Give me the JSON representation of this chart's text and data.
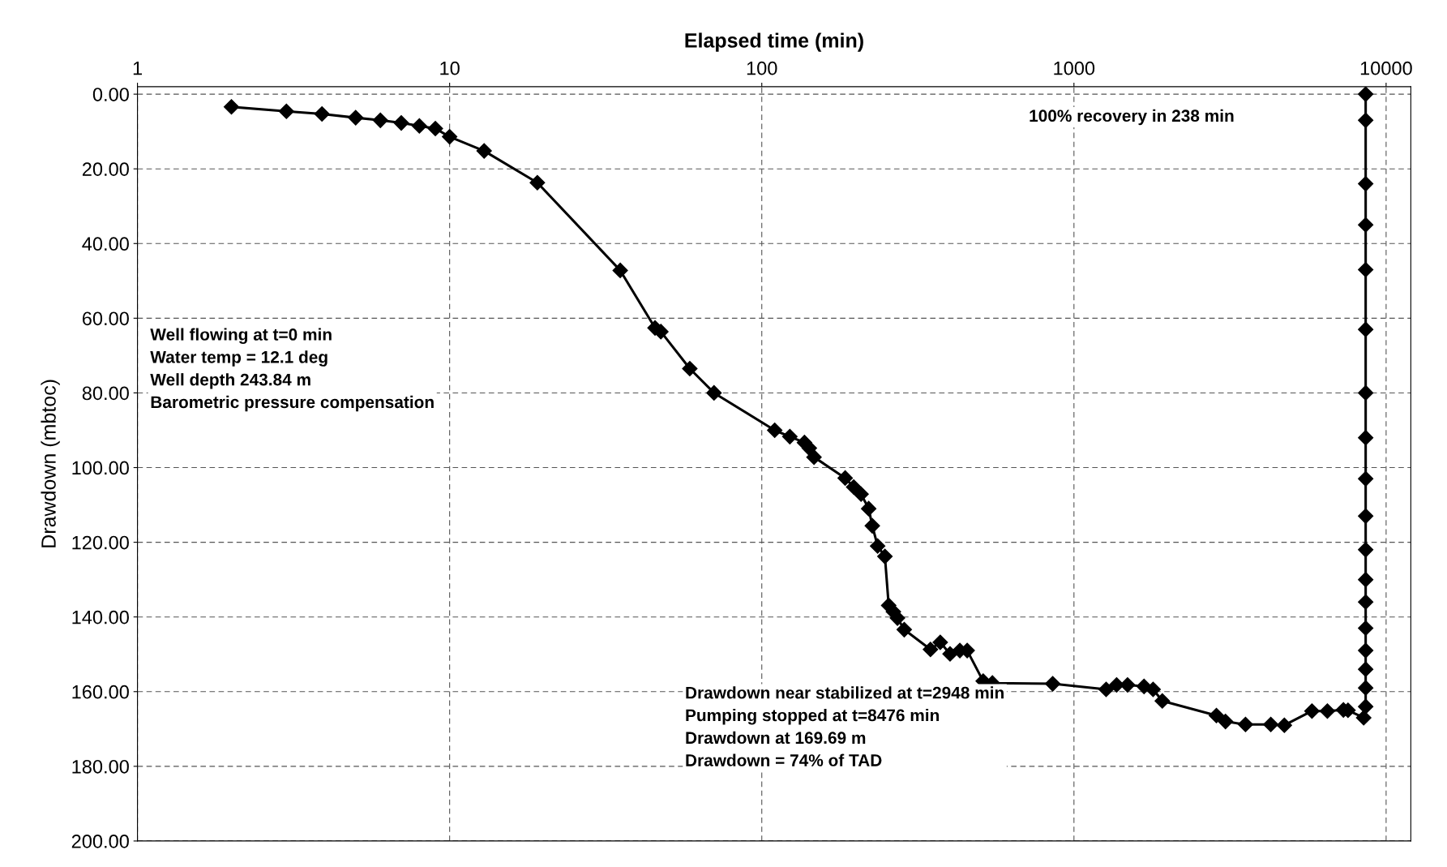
{
  "chart_data": {
    "type": "line",
    "xlabel": "Elapsed time (min)",
    "ylabel": "Drawdown (mbtoc)",
    "log": "x",
    "grid": true,
    "marker": "diamond",
    "line_style": "solid",
    "xlim": [
      1,
      12000
    ],
    "xticks": [
      1,
      10,
      100,
      1000,
      10000
    ],
    "ylim": [
      200,
      -2
    ],
    "yticks": [
      {
        "value": 0,
        "label": "0.00"
      },
      {
        "value": 20,
        "label": "20.00"
      },
      {
        "value": 40,
        "label": "40.00"
      },
      {
        "value": 60,
        "label": "60.00"
      },
      {
        "value": 80,
        "label": "80.00"
      },
      {
        "value": 100,
        "label": "100.00"
      },
      {
        "value": 120,
        "label": "120.00"
      },
      {
        "value": 140,
        "label": "140.00"
      },
      {
        "value": 160,
        "label": "160.00"
      },
      {
        "value": 180,
        "label": "180.00"
      },
      {
        "value": 200,
        "label": "200.00"
      }
    ],
    "series": [
      {
        "color": "#000000",
        "x": [
          2,
          3,
          3.9,
          5,
          6,
          7,
          8,
          9,
          10,
          12.9,
          19.1,
          35.2,
          45.5,
          47.5,
          58.8,
          70.3,
          110,
          123,
          137,
          142,
          147,
          185,
          197,
          208,
          220,
          226,
          235,
          248,
          255,
          264,
          272,
          286,
          347,
          373,
          401,
          431,
          455,
          512,
          548,
          855,
          1268,
          1370,
          1485,
          1677,
          1793,
          1919,
          2860,
          3058,
          3545,
          4272,
          4721,
          5787,
          6485,
          7299,
          7550,
          8476,
          8600,
          8600,
          8600,
          8600,
          8600,
          8600,
          8600,
          8600,
          8600,
          8600,
          8600,
          8600,
          8600,
          8600,
          8600,
          8600,
          8600,
          8600
        ],
        "values": [
          3.4,
          4.6,
          5.3,
          6.3,
          7.0,
          7.7,
          8.5,
          9.2,
          11.4,
          15.2,
          23.7,
          47.2,
          62.6,
          63.6,
          73.5,
          80,
          90,
          91.7,
          93.3,
          94.8,
          97.2,
          102.8,
          105.2,
          107.1,
          111,
          115.6,
          121,
          123.8,
          136.9,
          138.6,
          140.3,
          143.4,
          148.7,
          146.8,
          149.9,
          149,
          149,
          157.2,
          157.7,
          157.9,
          159.4,
          158.2,
          158.2,
          158.6,
          159.4,
          162.5,
          166.4,
          168,
          168.8,
          168.8,
          169,
          165.2,
          165.2,
          164.9,
          165,
          167,
          164,
          159,
          154,
          149,
          143,
          136,
          130,
          122,
          113,
          103,
          92,
          80,
          63,
          47,
          35,
          24,
          7,
          0
        ]
      }
    ],
    "annotations": [
      "Well flowing at t=0 min\nWater temp = 12.1 deg\nWell depth 243.84 m\nBarometric pressure compensation",
      "100% recovery in 238 min",
      "Drawdown near stabilized at t=2948 min\nPumping stopped at t=8476 min\nDrawdown at 169.69 m\nDrawdown = 74% of TAD"
    ]
  }
}
